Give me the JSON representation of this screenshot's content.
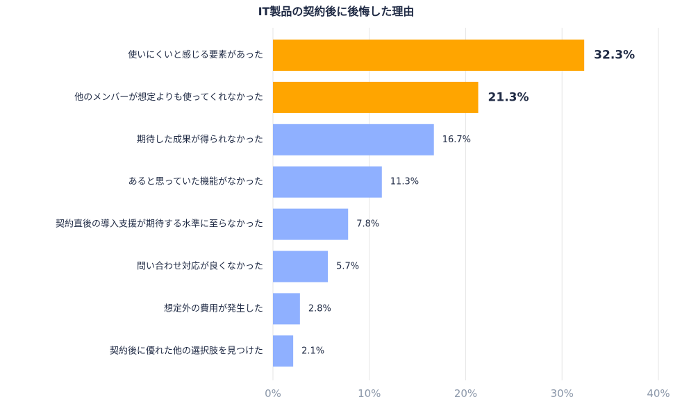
{
  "chart_data": {
    "type": "bar",
    "orientation": "horizontal",
    "title": "IT製品の契約後に後悔した理由",
    "categories": [
      "使いにくいと感じる要素があった",
      "他のメンバーが想定よりも使ってくれなかった",
      "期待した成果が得られなかった",
      "あると思っていた機能がなかった",
      "契約直後の導入支援が期待する水準に至らなかった",
      "問い合わせ対応が良くなかった",
      "想定外の費用が発生した",
      "契約後に優れた他の選択肢を見つけた"
    ],
    "values": [
      32.3,
      21.3,
      16.7,
      11.3,
      7.8,
      5.7,
      2.8,
      2.1
    ],
    "value_labels": [
      "32.3%",
      "21.3%",
      "16.7%",
      "11.3%",
      "7.8%",
      "5.7%",
      "2.8%",
      "2.1%"
    ],
    "highlighted": [
      true,
      true,
      false,
      false,
      false,
      false,
      false,
      false
    ],
    "xlim": [
      0,
      40
    ],
    "xticks": [
      0,
      10,
      20,
      30,
      40
    ],
    "xtick_labels": [
      "0%",
      "10%",
      "20%",
      "30%",
      "40%"
    ],
    "grid": true,
    "colors": {
      "highlight": "#FFA500",
      "normal": "#8FB0FF",
      "text": "#1f2a44",
      "tick": "#8a96a8",
      "grid": "#e6e6e6"
    }
  }
}
